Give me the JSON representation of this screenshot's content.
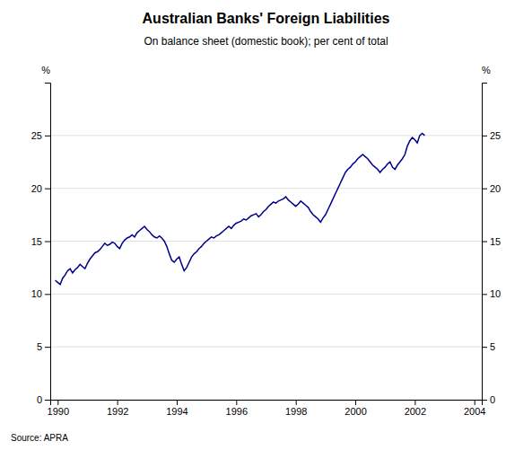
{
  "chart_data": {
    "type": "line",
    "title": "Australian Banks' Foreign Liabilities",
    "subtitle": "On balance sheet (domestic book); per cent of total",
    "source": "Source: APRA",
    "ylabel": "%",
    "y2label": "%",
    "color": "#00008B",
    "grid": true,
    "xlim": [
      1989.75,
      2004.25
    ],
    "xticks": [
      1990,
      1992,
      1994,
      1996,
      1998,
      2000,
      2002,
      2004
    ],
    "ylim": [
      0,
      30
    ],
    "yticks": [
      0,
      5,
      10,
      15,
      20,
      25
    ],
    "y2lim": [
      0,
      30
    ],
    "y2ticks": [
      0,
      5,
      10,
      15,
      20,
      25
    ],
    "x": [
      1989.917,
      1990.0,
      1990.083,
      1990.167,
      1990.25,
      1990.333,
      1990.417,
      1990.5,
      1990.583,
      1990.667,
      1990.75,
      1990.833,
      1990.917,
      1991.0,
      1991.083,
      1991.167,
      1991.25,
      1991.333,
      1991.417,
      1991.5,
      1991.583,
      1991.667,
      1991.75,
      1991.833,
      1991.917,
      1992.0,
      1992.083,
      1992.167,
      1992.25,
      1992.333,
      1992.417,
      1992.5,
      1992.583,
      1992.667,
      1992.75,
      1992.833,
      1992.917,
      1993.0,
      1993.083,
      1993.167,
      1993.25,
      1993.333,
      1993.417,
      1993.5,
      1993.583,
      1993.667,
      1993.75,
      1993.833,
      1993.917,
      1994.0,
      1994.083,
      1994.167,
      1994.25,
      1994.333,
      1994.417,
      1994.5,
      1994.583,
      1994.667,
      1994.75,
      1994.833,
      1994.917,
      1995.0,
      1995.083,
      1995.167,
      1995.25,
      1995.333,
      1995.417,
      1995.5,
      1995.583,
      1995.667,
      1995.75,
      1995.833,
      1995.917,
      1996.0,
      1996.083,
      1996.167,
      1996.25,
      1996.333,
      1996.417,
      1996.5,
      1996.583,
      1996.667,
      1996.75,
      1996.833,
      1996.917,
      1997.0,
      1997.083,
      1997.167,
      1997.25,
      1997.333,
      1997.417,
      1997.5,
      1997.583,
      1997.667,
      1997.75,
      1997.833,
      1997.917,
      1998.0,
      1998.083,
      1998.167,
      1998.25,
      1998.333,
      1998.417,
      1998.5,
      1998.583,
      1998.667,
      1998.75,
      1998.833,
      1998.917,
      1999.0,
      1999.083,
      1999.167,
      1999.25,
      1999.333,
      1999.417,
      1999.5,
      1999.583,
      1999.667,
      1999.75,
      1999.833,
      1999.917,
      2000.0,
      2000.083,
      2000.167,
      2000.25,
      2000.333,
      2000.417,
      2000.5,
      2000.583,
      2000.667,
      2000.75,
      2000.833,
      2000.917,
      2001.0,
      2001.083,
      2001.167,
      2001.25,
      2001.333,
      2001.417,
      2001.5,
      2001.583,
      2001.667,
      2001.75,
      2001.833,
      2001.917,
      2002.0,
      2002.083,
      2002.167,
      2002.25,
      2002.333
    ],
    "values": [
      11.3,
      11.1,
      10.9,
      11.5,
      11.8,
      12.2,
      12.4,
      12.0,
      12.3,
      12.5,
      12.8,
      12.6,
      12.4,
      12.9,
      13.3,
      13.6,
      13.9,
      14.0,
      14.2,
      14.5,
      14.8,
      14.6,
      14.7,
      14.9,
      14.8,
      14.5,
      14.3,
      14.8,
      15.1,
      15.3,
      15.4,
      15.6,
      15.4,
      15.8,
      16.0,
      16.2,
      16.4,
      16.1,
      15.9,
      15.6,
      15.4,
      15.3,
      15.5,
      15.3,
      15.0,
      14.5,
      13.8,
      13.2,
      13.0,
      13.3,
      13.5,
      12.8,
      12.2,
      12.5,
      13.0,
      13.5,
      13.8,
      14.0,
      14.3,
      14.5,
      14.8,
      15.0,
      15.2,
      15.4,
      15.3,
      15.5,
      15.6,
      15.8,
      16.0,
      16.2,
      16.4,
      16.2,
      16.5,
      16.7,
      16.8,
      16.9,
      17.1,
      17.0,
      17.2,
      17.4,
      17.5,
      17.6,
      17.3,
      17.5,
      17.8,
      18.0,
      18.3,
      18.5,
      18.7,
      18.6,
      18.8,
      18.9,
      19.0,
      19.2,
      18.9,
      18.7,
      18.5,
      18.3,
      18.5,
      18.8,
      18.6,
      18.4,
      18.2,
      17.8,
      17.5,
      17.3,
      17.1,
      16.8,
      17.2,
      17.5,
      18.0,
      18.5,
      19.0,
      19.5,
      20.0,
      20.5,
      21.0,
      21.5,
      21.8,
      22.0,
      22.3,
      22.5,
      22.8,
      23.0,
      23.2,
      23.0,
      22.8,
      22.5,
      22.2,
      22.0,
      21.8,
      21.5,
      21.8,
      22.0,
      22.3,
      22.5,
      22.0,
      21.8,
      22.2,
      22.5,
      22.8,
      23.2,
      24.0,
      24.5,
      24.8,
      24.6,
      24.3,
      25.0,
      25.2,
      25.0
    ]
  }
}
